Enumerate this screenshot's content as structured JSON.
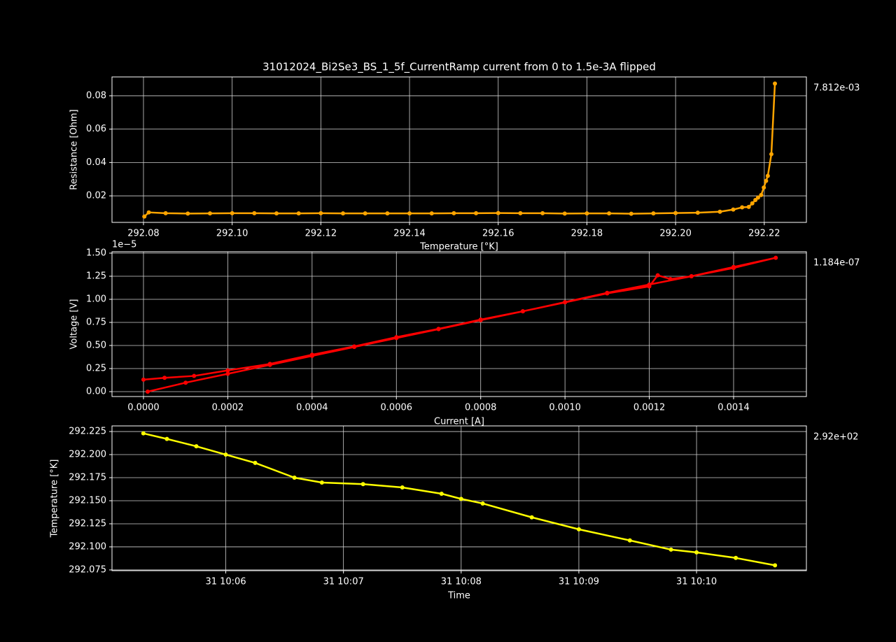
{
  "chart_data": [
    {
      "type": "line",
      "title": "31012024_Bi2Se3_BS_1_5f_CurrentRamp current from 0 to 1.5e-3A flipped",
      "x_label": "Temperature [°K]",
      "y_label": "Resistance [Ohm]",
      "annotation": "7.812e-03",
      "grid": true,
      "xlim": [
        292.0729,
        292.2295
      ],
      "ylim": [
        0.0041,
        0.0913
      ],
      "xticks": [
        292.08,
        {
          "value": 292.1,
          "label": "292.10"
        },
        292.12,
        292.14,
        292.16,
        292.18,
        {
          "value": 292.2,
          "label": "292.20"
        },
        292.22
      ],
      "yticks": [
        0.02,
        0.04,
        0.06,
        0.08
      ],
      "x": [
        292.0802,
        292.0812,
        292.085,
        292.09,
        292.095,
        292.1,
        292.105,
        292.11,
        292.115,
        292.12,
        292.125,
        292.13,
        292.135,
        292.14,
        292.145,
        292.15,
        292.155,
        292.16,
        292.165,
        292.17,
        292.175,
        292.18,
        292.185,
        292.19,
        292.195,
        292.2,
        292.205,
        292.21,
        292.213,
        292.215,
        292.2165,
        292.2173,
        292.218,
        292.2186,
        292.2193,
        292.2199,
        292.2204,
        292.2208,
        292.2216,
        292.2224
      ],
      "series": [
        {
          "color": "#ffa500",
          "values": [
            0.0076,
            0.0101,
            0.0096,
            0.0094,
            0.0095,
            0.0096,
            0.0096,
            0.0095,
            0.0095,
            0.0096,
            0.0095,
            0.0095,
            0.0095,
            0.0095,
            0.0095,
            0.0096,
            0.0096,
            0.0097,
            0.0096,
            0.0096,
            0.0094,
            0.0095,
            0.0095,
            0.0093,
            0.0095,
            0.0097,
            0.0099,
            0.0105,
            0.0118,
            0.0131,
            0.0134,
            0.0155,
            0.0175,
            0.019,
            0.0205,
            0.025,
            0.029,
            0.032,
            0.045,
            0.0873
          ]
        }
      ]
    },
    {
      "type": "line",
      "x_label": "Current [A]",
      "y_label": "Voltage [V]",
      "annotation": "1.184e-07",
      "y_offset_label": "1e−5",
      "grid": true,
      "xlim": [
        -7.47e-05,
        0.0015727
      ],
      "ylim": [
        -5.3e-07,
        1.515e-05
      ],
      "xticks": [
        {
          "value": 0,
          "label": "0.0000"
        },
        {
          "value": 0.0002,
          "label": "0.0002"
        },
        {
          "value": 0.0004,
          "label": "0.0004"
        },
        {
          "value": 0.0006,
          "label": "0.0006"
        },
        {
          "value": 0.0008,
          "label": "0.0008"
        },
        {
          "value": 0.001,
          "label": "0.0010"
        },
        {
          "value": 0.0012,
          "label": "0.0012"
        },
        {
          "value": 0.0014,
          "label": "0.0014"
        }
      ],
      "yticks": [
        {
          "value": 0,
          "label": "0.00"
        },
        {
          "value": 2.5e-06,
          "label": "0.25"
        },
        {
          "value": 5e-06,
          "label": "0.50"
        },
        {
          "value": 7.5e-06,
          "label": "0.75"
        },
        {
          "value": 1e-05,
          "label": "1.00"
        },
        {
          "value": 1.25e-05,
          "label": "1.25"
        },
        {
          "value": 1.5e-05,
          "label": "1.50"
        }
      ],
      "x": [
        1e-05,
        0.0001,
        0.0002,
        0.0003,
        0.0004,
        0.0005,
        0.0006,
        0.0007,
        0.0008,
        0.0009,
        0.001,
        0.0011,
        0.0012,
        0.00122,
        0.00125,
        0.0013,
        0.0014,
        0.0015,
        0.0014,
        0.0013,
        0.0012,
        0.0011,
        0.001,
        0.0009,
        0.0008,
        0.0007,
        0.0006,
        0.0005,
        0.0004,
        0.0003,
        0.0002,
        0.00012,
        5e-05,
        0
      ],
      "series": [
        {
          "color": "#ff0000",
          "values": [
            0,
            9.7e-07,
            1.93e-06,
            2.9e-06,
            3.87e-06,
            4.84e-06,
            5.8e-06,
            6.77e-06,
            7.74e-06,
            8.7e-06,
            9.67e-06,
            1.064e-05,
            1.14e-05,
            1.26e-05,
            1.22e-05,
            1.25e-05,
            1.35e-05,
            1.45e-05,
            1.34e-05,
            1.25e-05,
            1.16e-05,
            1.07e-05,
            9.7e-06,
            8.7e-06,
            7.8e-06,
            6.8e-06,
            5.9e-06,
            4.9e-06,
            4e-06,
            3e-06,
            2.3e-06,
            1.7e-06,
            1.5e-06,
            1.3e-06
          ]
        }
      ]
    },
    {
      "type": "line",
      "x_label": "Time",
      "y_label": "Temperature [°K]",
      "annotation": "2.92e+02",
      "grid": true,
      "xlim": [
        "31 10:05:02",
        "31 10:10:56"
      ],
      "ylim": [
        292.0742,
        292.2311
      ],
      "xticks": [
        "31 10:06",
        "31 10:07",
        "31 10:08",
        "31 10:09",
        "31 10:10"
      ],
      "yticks": [
        292.075,
        {
          "value": 292.1,
          "label": "292.100"
        },
        292.125,
        {
          "value": 292.15,
          "label": "292.150"
        },
        292.175,
        {
          "value": 292.2,
          "label": "292.200"
        },
        292.225
      ],
      "x": [
        "31 10:05:18",
        "31 10:05:30",
        "31 10:05:45",
        "31 10:06:00",
        "31 10:06:15",
        "31 10:06:35",
        "31 10:06:49",
        "31 10:07:10",
        "31 10:07:30",
        "31 10:07:50",
        "31 10:08:00",
        "31 10:08:11",
        "31 10:08:36",
        "31 10:09:00",
        "31 10:09:26",
        "31 10:09:47",
        "31 10:10:00",
        "31 10:10:20",
        "31 10:10:40"
      ],
      "series": [
        {
          "color": "#ffff00",
          "values": [
            292.223,
            292.217,
            292.209,
            292.2,
            292.191,
            292.175,
            292.1697,
            292.168,
            292.1644,
            292.1576,
            292.152,
            292.147,
            292.132,
            292.119,
            292.107,
            292.097,
            292.094,
            292.088,
            292.08
          ]
        }
      ]
    }
  ]
}
